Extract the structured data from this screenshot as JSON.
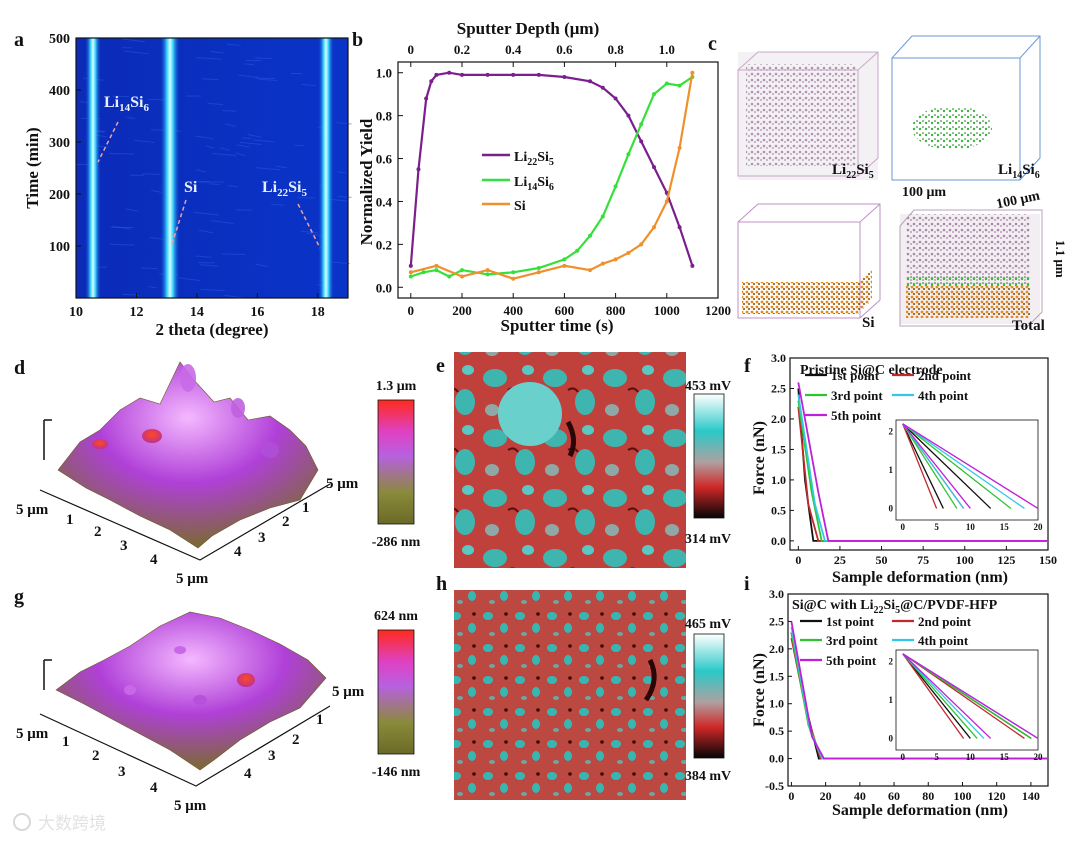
{
  "colors": {
    "li22": "#7a1f8c",
    "li14": "#36e03a",
    "si": "#f0902c",
    "c1": "#111111",
    "c2": "#c0282e",
    "c3": "#2fc42f",
    "c4": "#33c8e8",
    "c5": "#c020d8"
  },
  "panel_letters": {
    "a": "a",
    "b": "b",
    "c": "c",
    "d": "d",
    "e": "e",
    "f": "f",
    "g": "g",
    "h": "h",
    "i": "i"
  },
  "panel_a": {
    "xlabel": "2 theta (degree)",
    "ylabel": "Time (min)",
    "xticks": [
      "10",
      "12",
      "14",
      "16",
      "18"
    ],
    "yticks": [
      "100",
      "200",
      "300",
      "400",
      "500"
    ],
    "ann_li14": "Li14Si6",
    "ann_si": "Si",
    "ann_li22": "Li22Si5"
  },
  "chart_data": [
    {
      "type": "heatmap",
      "id": "a",
      "xlabel": "2 theta (degree)",
      "ylabel": "Time (min)",
      "xlim": [
        10,
        19
      ],
      "ylim": [
        0,
        500
      ],
      "bright_lines_2theta": [
        10.7,
        13.1,
        18.3
      ],
      "annotations": [
        "Li14Si6",
        "Si",
        "Li22Si5"
      ]
    },
    {
      "type": "line",
      "id": "b",
      "xlabel": "Sputter time (s)",
      "ylabel": "Normalized Yield",
      "top_xlabel": "Sputter Depth (μm)",
      "xlim": [
        -50,
        1200
      ],
      "ylim": [
        -0.05,
        1.05
      ],
      "xticks": [
        0,
        200,
        400,
        600,
        800,
        1000,
        1200
      ],
      "yticks": [
        0.0,
        0.2,
        0.4,
        0.6,
        0.8,
        1.0
      ],
      "top_ticks": [
        "0",
        "0.2",
        "0.4",
        "0.6",
        "0.8",
        "1.0"
      ],
      "series": [
        {
          "name": "Li22Si5",
          "x": [
            0,
            30,
            60,
            80,
            100,
            150,
            200,
            300,
            400,
            500,
            600,
            700,
            750,
            800,
            850,
            900,
            950,
            1000,
            1050,
            1100
          ],
          "y": [
            0.1,
            0.55,
            0.88,
            0.96,
            0.99,
            1.0,
            0.99,
            0.99,
            0.99,
            0.99,
            0.98,
            0.96,
            0.93,
            0.88,
            0.8,
            0.68,
            0.56,
            0.44,
            0.28,
            0.1
          ]
        },
        {
          "name": "Li14Si6",
          "x": [
            0,
            50,
            100,
            150,
            200,
            300,
            400,
            500,
            600,
            650,
            700,
            750,
            800,
            850,
            900,
            950,
            1000,
            1050,
            1100
          ],
          "y": [
            0.05,
            0.07,
            0.08,
            0.05,
            0.08,
            0.06,
            0.07,
            0.09,
            0.13,
            0.17,
            0.24,
            0.33,
            0.47,
            0.62,
            0.76,
            0.9,
            0.95,
            0.94,
            0.98
          ]
        },
        {
          "name": "Si",
          "x": [
            0,
            100,
            200,
            300,
            400,
            500,
            600,
            700,
            750,
            800,
            850,
            900,
            950,
            1000,
            1050,
            1100
          ],
          "y": [
            0.07,
            0.1,
            0.05,
            0.08,
            0.04,
            0.07,
            0.1,
            0.08,
            0.11,
            0.13,
            0.16,
            0.2,
            0.28,
            0.4,
            0.65,
            1.0
          ]
        }
      ]
    },
    {
      "type": "line",
      "id": "f",
      "title": "Pristine Si@C electrode",
      "xlabel": "Sample deformation (nm)",
      "ylabel": "Force (nN)",
      "xlim": [
        -5,
        150
      ],
      "ylim": [
        -0.15,
        3.0
      ],
      "xticks": [
        0,
        25,
        50,
        75,
        100,
        125,
        150
      ],
      "yticks": [
        0.0,
        0.5,
        1.0,
        1.5,
        2.0,
        2.5,
        3.0
      ],
      "series_names": [
        "1st point",
        "2nd point",
        "3rd point",
        "4th point",
        "5th point"
      ],
      "inset_xticks": [
        0,
        5,
        10,
        15,
        20
      ],
      "inset_yticks": [
        0,
        1,
        2
      ]
    },
    {
      "type": "line",
      "id": "i",
      "title": "Si@C with Li22Si5@C/PVDF-HFP",
      "xlabel": "Sample deformation (nm)",
      "ylabel": "Force (nN)",
      "xlim": [
        -2,
        150
      ],
      "ylim": [
        -0.5,
        3.0
      ],
      "xticks": [
        0,
        20,
        40,
        60,
        80,
        100,
        120,
        140
      ],
      "yticks": [
        -0.5,
        0.0,
        0.5,
        1.0,
        1.5,
        2.0,
        2.5,
        3.0
      ],
      "series_names": [
        "1st point",
        "2nd point",
        "3rd point",
        "4th point",
        "5th point"
      ],
      "inset_xticks": [
        0,
        5,
        10,
        15,
        20
      ],
      "inset_yticks": [
        0,
        1,
        2
      ]
    }
  ],
  "panel_b": {
    "legend": [
      "Li22Si5",
      "Li14Si6",
      "Si"
    ]
  },
  "panel_c": {
    "labels": [
      "Li22Si5",
      "Li14Si6",
      "Si",
      "Total"
    ],
    "dim1": "100 μm",
    "dim2": "100 μm",
    "dim3": "1.1 μm"
  },
  "panel_d": {
    "scale_max": "1.3 μm",
    "scale_min": "-286 nm",
    "axis": [
      "5 μm",
      "1",
      "2",
      "3",
      "4",
      "5 μm"
    ],
    "axis_r": [
      "5 μm",
      "1",
      "2",
      "3",
      "4",
      "5 μm"
    ]
  },
  "panel_e": {
    "scale_max": "453 mV",
    "scale_min": "314 mV"
  },
  "panel_g": {
    "scale_max": "624 nm",
    "scale_min": "-146 nm",
    "axis": [
      "5 μm",
      "1",
      "2",
      "3",
      "4",
      "5 μm"
    ],
    "axis_r": [
      "5 μm",
      "1",
      "2",
      "3",
      "4",
      "5 μm"
    ]
  },
  "panel_h": {
    "scale_max": "465 mV",
    "scale_min": "384 mV"
  },
  "watermark": "大数跨境"
}
